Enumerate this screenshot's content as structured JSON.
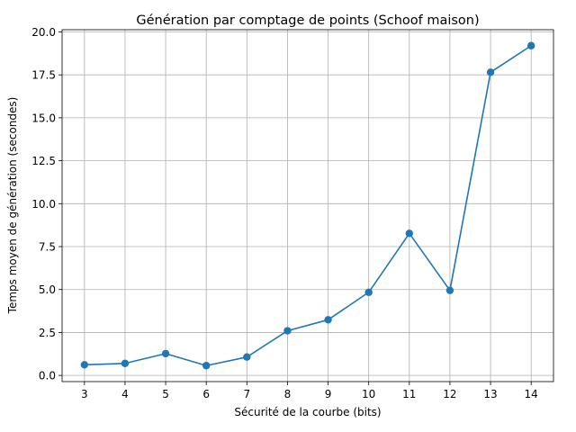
{
  "chart_data": {
    "type": "line",
    "title": "Génération par comptage de points (Schoof maison)",
    "xlabel": "Sécurité de la courbe (bits)",
    "ylabel": "Temps moyen de génération (secondes)",
    "x": [
      3,
      4,
      5,
      6,
      7,
      8,
      9,
      10,
      11,
      12,
      13,
      14
    ],
    "series": [
      {
        "values": [
          0.62,
          0.7,
          1.27,
          0.57,
          1.07,
          2.6,
          3.24,
          4.84,
          8.27,
          4.95,
          17.65,
          19.2
        ]
      }
    ],
    "x_ticks": [
      "3",
      "4",
      "5",
      "6",
      "7",
      "8",
      "9",
      "10",
      "11",
      "12",
      "13",
      "14"
    ],
    "y_ticks": [
      "0.0",
      "2.5",
      "5.0",
      "7.5",
      "10.0",
      "12.5",
      "15.0",
      "17.5",
      "20.0"
    ],
    "y_tick_values": [
      0,
      2.5,
      5,
      7.5,
      10,
      12.5,
      15,
      17.5,
      20
    ],
    "xlim": [
      2.45,
      14.55
    ],
    "ylim": [
      -0.36,
      20.13
    ],
    "grid": true,
    "marker": "circle",
    "line_color": "#1f77b4"
  }
}
